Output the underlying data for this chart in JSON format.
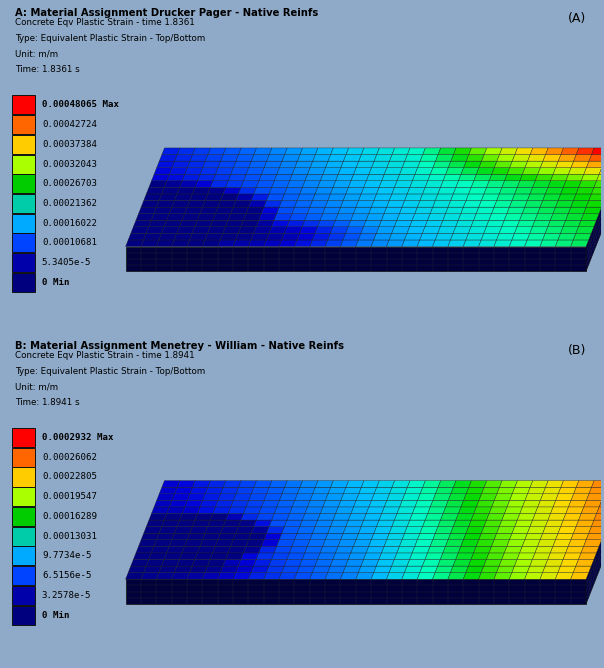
{
  "panel_A": {
    "title_bold": "A: Material Assignment Drucker Pager - Native Reinfs",
    "subtitle_lines": [
      "Concrete Eqv Plastic Strain - time 1.8361",
      "Type: Equivalent Plastic Strain - Top/Bottom",
      "Unit: m/m",
      "Time: 1.8361 s"
    ],
    "label": "(A)",
    "legend_values": [
      "0.00048065 Max",
      "0.00042724",
      "0.00037384",
      "0.00032043",
      "0.00026703",
      "0.00021362",
      "0.00016022",
      "0.00010681",
      "5.3405e-5",
      "0 Min"
    ],
    "legend_colors": [
      "#ff0000",
      "#ff6600",
      "#ffcc00",
      "#aaff00",
      "#00cc00",
      "#00ccaa",
      "#00aaff",
      "#0044ff",
      "#0000aa",
      "#00007f"
    ]
  },
  "panel_B": {
    "title_bold": "B: Material Assignment Menetrey - William - Native Reinfs",
    "subtitle_lines": [
      "Concrete Eqv Plastic Strain - time 1.8941",
      "Type: Equivalent Plastic Strain - Top/Bottom",
      "Unit: m/m",
      "Time: 1.8941 s"
    ],
    "label": "(B)",
    "legend_values": [
      "0.0002932 Max",
      "0.00026062",
      "0.00022805",
      "0.00019547",
      "0.00016289",
      "0.00013031",
      "9.7734e-5",
      "6.5156e-5",
      "3.2578e-5",
      "0 Min"
    ],
    "legend_colors": [
      "#ff0000",
      "#ff6600",
      "#ffcc00",
      "#aaff00",
      "#00cc00",
      "#00ccaa",
      "#00aaff",
      "#0044ff",
      "#0000aa",
      "#00007f"
    ]
  },
  "bg_color": "#b8cce4",
  "figsize": [
    6.04,
    6.68
  ],
  "dpi": 100
}
